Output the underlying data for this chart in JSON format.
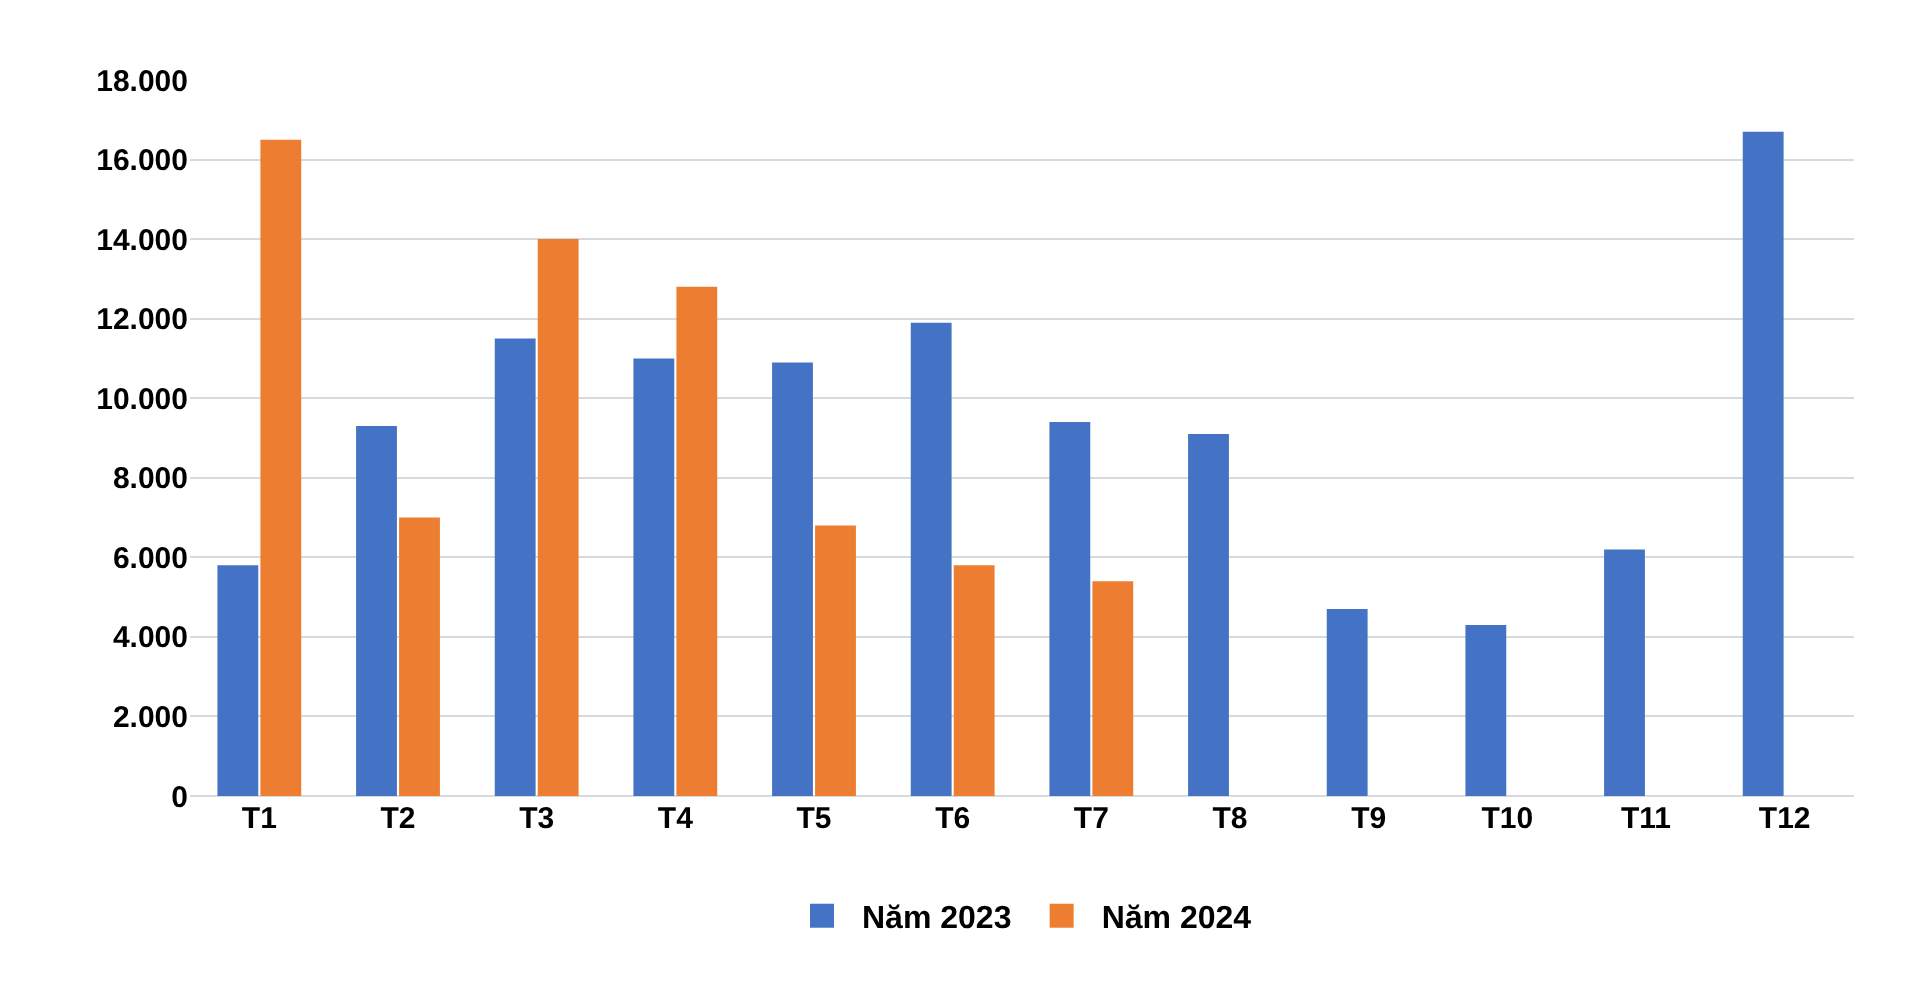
{
  "chart_data": {
    "type": "bar",
    "categories": [
      "T1",
      "T2",
      "T3",
      "T4",
      "T5",
      "T6",
      "T7",
      "T8",
      "T9",
      "T10",
      "T11",
      "T12"
    ],
    "series": [
      {
        "name": "Năm 2023",
        "color": "#4472c4",
        "values": [
          5800,
          9300,
          11500,
          11000,
          10900,
          11900,
          9400,
          9100,
          4700,
          4300,
          6200,
          16700
        ]
      },
      {
        "name": "Năm 2024",
        "color": "#ed7d31",
        "values": [
          16500,
          7000,
          14000,
          12800,
          6800,
          5800,
          5400,
          null,
          null,
          null,
          null,
          null
        ]
      }
    ],
    "ylim": [
      0,
      18000
    ],
    "yticks": [
      0,
      {
        "value": 2000,
        "label": "2.000"
      },
      {
        "value": 4000,
        "label": "4.000"
      },
      {
        "value": 6000,
        "label": "6.000"
      },
      {
        "value": 8000,
        "label": "8.000"
      },
      {
        "value": 10000,
        "label": "10.000"
      },
      {
        "value": 12000,
        "label": "12.000"
      },
      {
        "value": 14000,
        "label": "14.000"
      },
      {
        "value": 16000,
        "label": "16.000"
      },
      {
        "value": 18000,
        "label": "18.000"
      }
    ],
    "grid": "y",
    "legend": "bottom"
  }
}
